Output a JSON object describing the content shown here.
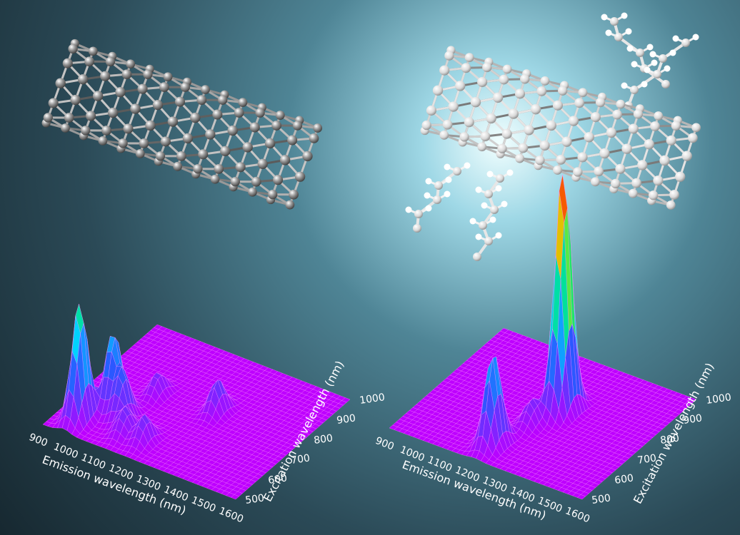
{
  "colors": {
    "surface_base": "#c400ff",
    "grid": "#ff8cff",
    "background_dark": "#1e333d",
    "background_glow": "#e8fbff",
    "atom": "#d8d8d8",
    "hydrogen": "#ffffff"
  },
  "chart_data": [
    {
      "type": "surface",
      "title": "",
      "xlabel": "Emission wavelength (nm)",
      "ylabel": "Excitation wavelength (nm)",
      "x_ticks": [
        "900",
        "1000",
        "1100",
        "1200",
        "1300",
        "1400",
        "1500",
        "1600"
      ],
      "y_ticks": [
        "500",
        "600",
        "700",
        "800",
        "900",
        "1000"
      ],
      "xlim": [
        900,
        1600
      ],
      "ylim": [
        500,
        1000
      ],
      "zlim": [
        0,
        1
      ],
      "peaks": [
        {
          "x": 975,
          "y": 570,
          "z": 0.55
        },
        {
          "x": 1030,
          "y": 650,
          "z": 0.36
        },
        {
          "x": 1080,
          "y": 630,
          "z": 0.22
        },
        {
          "x": 1130,
          "y": 580,
          "z": 0.12
        },
        {
          "x": 1200,
          "y": 580,
          "z": 0.12
        },
        {
          "x": 1300,
          "y": 780,
          "z": 0.15
        },
        {
          "x": 1100,
          "y": 760,
          "z": 0.1
        }
      ]
    },
    {
      "type": "surface",
      "title": "",
      "xlabel": "Emission wavelength (nm)",
      "ylabel": "Excitation wavelength (nm)",
      "x_ticks": [
        "900",
        "1000",
        "1100",
        "1200",
        "1300",
        "1400",
        "1500",
        "1600"
      ],
      "y_ticks": [
        "500",
        "600",
        "700",
        "800",
        "900",
        "1000"
      ],
      "xlim": [
        900,
        1600
      ],
      "ylim": [
        500,
        1000
      ],
      "zlim": [
        0,
        1
      ],
      "peaks": [
        {
          "x": 1210,
          "y": 580,
          "z": 0.38
        },
        {
          "x": 1290,
          "y": 790,
          "z": 1.0
        },
        {
          "x": 1250,
          "y": 700,
          "z": 0.1
        }
      ]
    }
  ],
  "molecules": [
    {
      "name": "nanotube",
      "color": "#7a7a7a"
    },
    {
      "name": "functionalized-nanotube",
      "color": "#b8b8b8"
    }
  ]
}
